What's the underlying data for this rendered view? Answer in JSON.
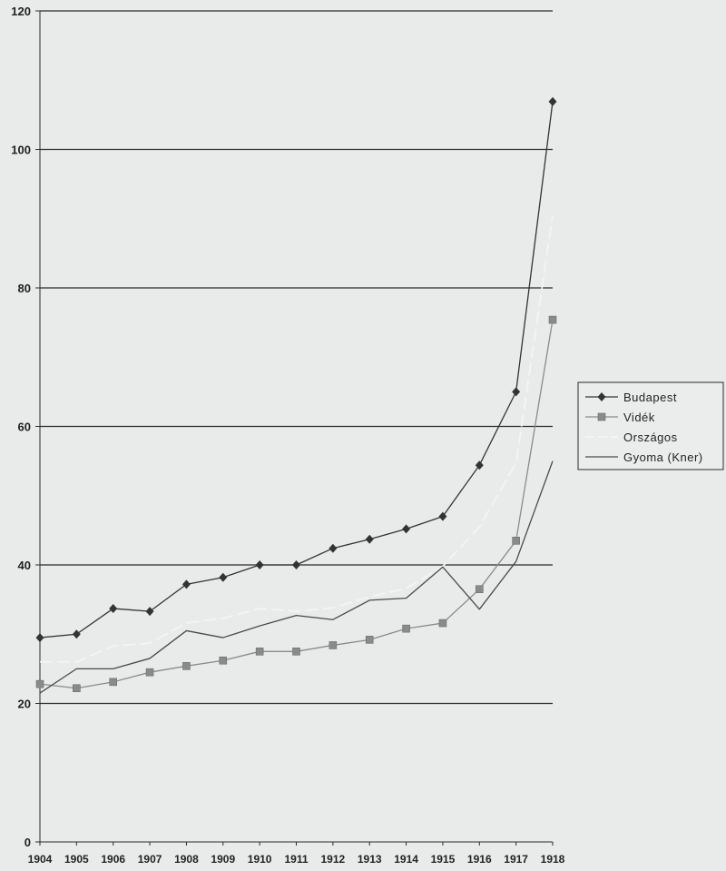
{
  "chart_data": {
    "type": "line",
    "title": "",
    "xlabel": "",
    "ylabel": "",
    "categories": [
      "1904",
      "1905",
      "1906",
      "1907",
      "1908",
      "1909",
      "1910",
      "1911",
      "1912",
      "1913",
      "1914",
      "1915",
      "1916",
      "1917",
      "1918"
    ],
    "ylim": [
      0,
      120
    ],
    "yticks": [
      0,
      20,
      40,
      60,
      80,
      100,
      120
    ],
    "grid": true,
    "legend_position": "right",
    "series": [
      {
        "name": "Budapest",
        "marker": "diamond",
        "color": "#333333",
        "values": [
          29.5,
          30,
          33.7,
          33.3,
          37.2,
          38.2,
          40,
          40,
          42.4,
          43.7,
          45.2,
          47,
          54.4,
          65,
          106.9
        ]
      },
      {
        "name": "Vidék",
        "marker": "square",
        "color": "#8a8a8a",
        "values": [
          22.8,
          22.2,
          23.1,
          24.5,
          25.4,
          26.2,
          27.5,
          27.5,
          28.4,
          29.2,
          30.8,
          31.6,
          36.5,
          43.5,
          75.4
        ]
      },
      {
        "name": "Országos",
        "marker": "none",
        "color": "#f4f4f4",
        "dash": "dashed",
        "values": [
          26,
          26,
          28.3,
          28.7,
          31.6,
          32.3,
          33.7,
          33.3,
          33.8,
          35.4,
          36.6,
          39.8,
          45.5,
          54.7,
          90.4
        ]
      },
      {
        "name": "Gyoma (Kner)",
        "marker": "none",
        "color": "#4a4a4a",
        "values": [
          21.5,
          25,
          25,
          26.5,
          30.5,
          29.5,
          31.2,
          32.7,
          32.1,
          34.9,
          35.2,
          39.7,
          33.6,
          40.5,
          55
        ]
      }
    ]
  }
}
